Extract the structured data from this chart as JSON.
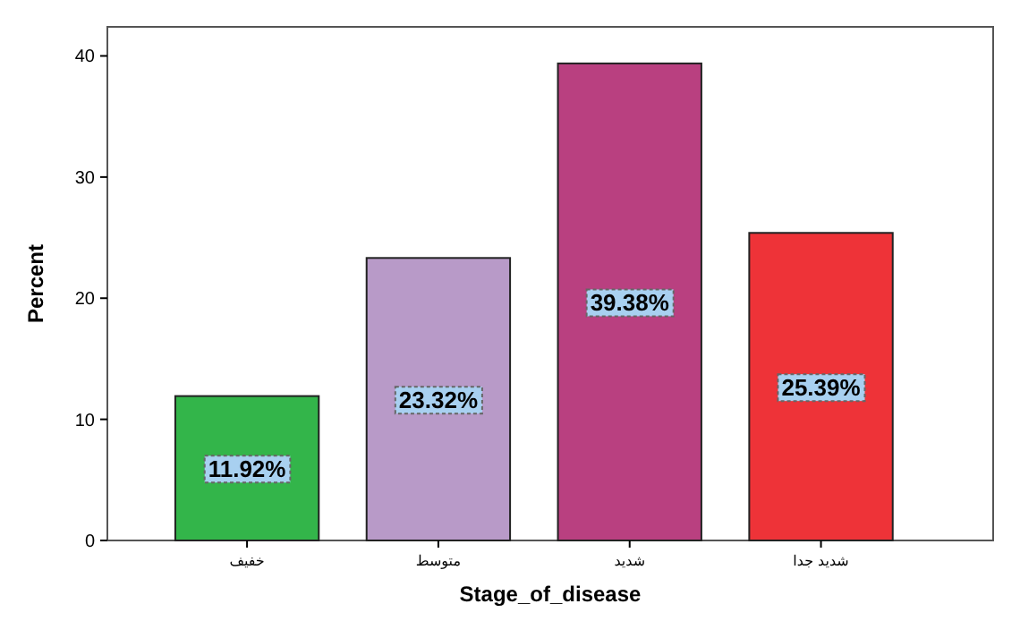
{
  "chart_data": {
    "type": "bar",
    "xlabel": "Stage_of_disease",
    "ylabel": "Percent",
    "categories": [
      "خفيف",
      "متوسط",
      "شديد",
      "شديد جدا"
    ],
    "values": [
      11.92,
      23.32,
      39.38,
      25.39
    ],
    "colors": [
      "#33b54a",
      "#b89ac8",
      "#b94080",
      "#ee3338"
    ],
    "value_labels": [
      "11.92%",
      "23.32%",
      "39.38%",
      "25.39%"
    ],
    "ylim": [
      0,
      42.4
    ],
    "yticks": [
      0,
      10,
      20,
      30,
      40
    ],
    "grid": false
  }
}
